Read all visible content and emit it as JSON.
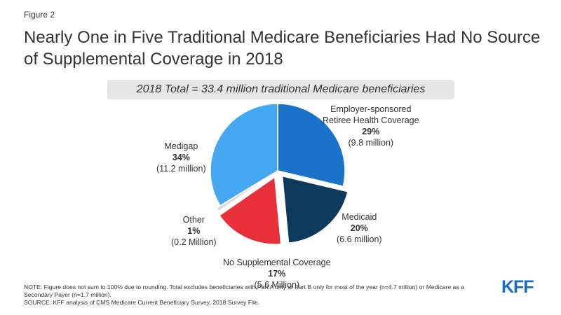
{
  "figure_label": "Figure 2",
  "title": "Nearly One in Five Traditional Medicare Beneficiaries Had No Source of Supplemental Coverage in 2018",
  "total_note": "2018 Total = 33.4 million traditional Medicare beneficiaries",
  "chart_data": {
    "type": "pie",
    "slices": [
      {
        "name_lines": [
          "Employer-sponsored",
          "Retiree Health Coverage"
        ],
        "pct_label": "29%",
        "sub_label": "(9.8 million)",
        "value": 29,
        "color": "#1a73c9"
      },
      {
        "name_lines": [
          "Medicaid"
        ],
        "pct_label": "20%",
        "sub_label": "(6.6 million)",
        "value": 20,
        "color": "#0d3a5c"
      },
      {
        "name_lines": [
          "No Supplemental Coverage"
        ],
        "pct_label": "17%",
        "sub_label": "(5.6 Million)",
        "value": 17,
        "color": "#e8303a"
      },
      {
        "name_lines": [
          "Other"
        ],
        "pct_label": "1%",
        "sub_label": "(0.2 Million)",
        "value": 1,
        "color": "#dddddd"
      },
      {
        "name_lines": [
          "Medigap"
        ],
        "pct_label": "34%",
        "sub_label": "(11.2 million)",
        "value": 34,
        "color": "#45a6f2"
      }
    ]
  },
  "notes": [
    "NOTE: Figure does not sum to 100% due to rounding. Total excludes beneficiaries with Part A only or Part B only for most of the year (n=4.7 million) or Medicare as a Secondary Payer (n=1.7 million).",
    "SOURCE: KFF analysis of CMS Medicare Current Beneficiary Survey, 2018 Survey File."
  ],
  "logo": "KFF"
}
